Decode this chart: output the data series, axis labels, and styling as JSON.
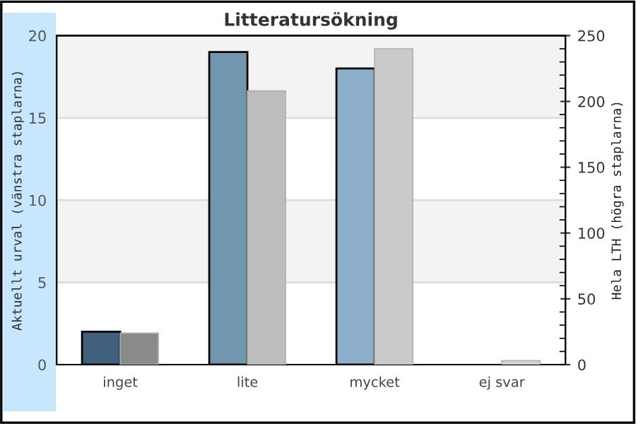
{
  "chart_data": {
    "type": "bar",
    "title": "Litteratursökning",
    "ylabel": "Aktuellt urval (vänstra staplarna)",
    "y2label": "Hela LTH (högra staplarna)",
    "categories": [
      "inget",
      "lite",
      "mycket",
      "ej svar"
    ],
    "series": [
      {
        "colors": [
          "#41607e",
          "#7295b0",
          "#8dafcc",
          "#a8c6e0"
        ],
        "values": [
          2,
          19,
          18,
          0
        ]
      },
      {
        "colors": [
          "#8a8a8a",
          "#bdbdbd",
          "#cacaca",
          "#d4d4d4"
        ],
        "values": [
          24,
          208,
          240,
          3
        ],
        "axis": "y2"
      }
    ],
    "ylim": [
      0,
      20
    ],
    "yticks": [
      0,
      5,
      10,
      15,
      20
    ],
    "y2lim": [
      0,
      250
    ],
    "y2ticks": [
      0,
      50,
      100,
      150,
      200,
      250
    ],
    "bands": [
      {
        "axis": "y",
        "from": 5,
        "to": 10,
        "color": "#f3f3f3"
      },
      {
        "axis": "y",
        "from": 15,
        "to": 20,
        "color": "#f3f3f3"
      }
    ],
    "grid": "y",
    "legend": false
  }
}
